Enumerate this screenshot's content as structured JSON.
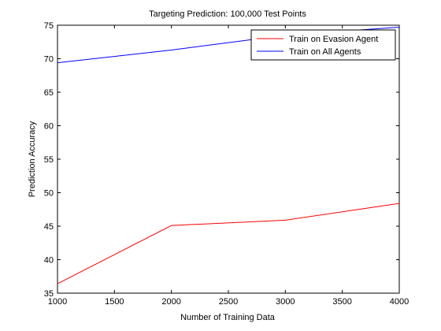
{
  "chart_data": {
    "type": "line",
    "title": "Targeting Prediction: 100,000 Test Points",
    "xlabel": "Number of Training Data",
    "ylabel": "Prediction Accuracy",
    "xlim": [
      1000,
      4000
    ],
    "ylim": [
      35,
      75
    ],
    "xticks": [
      1000,
      1500,
      2000,
      2500,
      3000,
      3500,
      4000
    ],
    "yticks": [
      35,
      40,
      45,
      50,
      55,
      60,
      65,
      70,
      75
    ],
    "grid": false,
    "legend_position": "top-right",
    "x": [
      1000,
      2000,
      3000,
      4000
    ],
    "series": [
      {
        "name": "Train on Evasion Agent",
        "color": "#ff0000",
        "values": [
          36.4,
          45.1,
          45.9,
          48.4
        ]
      },
      {
        "name": "Train on All Agents",
        "color": "#0000ff",
        "values": [
          69.4,
          71.3,
          73.5,
          74.7
        ]
      }
    ]
  }
}
